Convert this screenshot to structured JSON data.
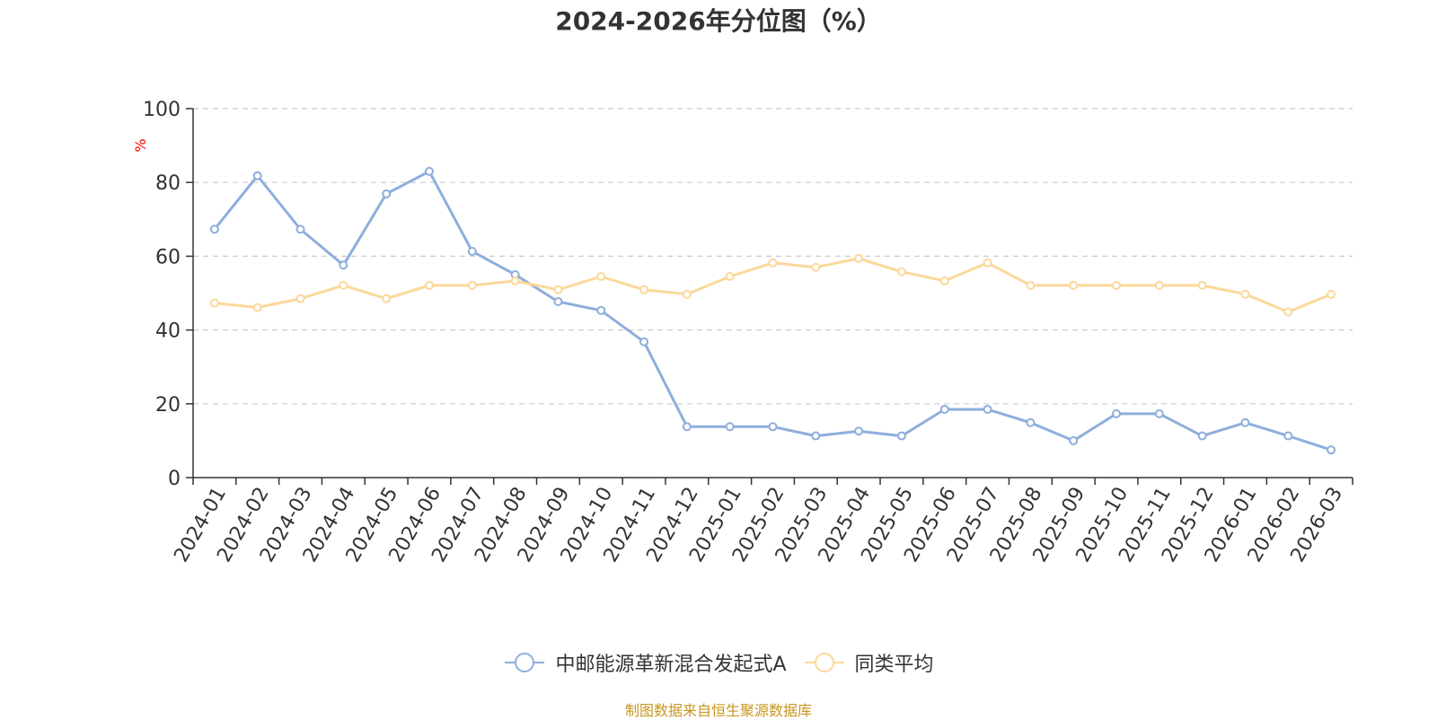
{
  "chart_data": {
    "type": "line",
    "title": "2024-2026年分位图（%）",
    "ylabel": "%",
    "xlabel": "",
    "ylim": [
      0,
      100
    ],
    "yticks": [
      0,
      20,
      40,
      60,
      80,
      100
    ],
    "grid": true,
    "legend_position": "bottom",
    "categories": [
      "2024-01",
      "2024-02",
      "2024-03",
      "2024-04",
      "2024-05",
      "2024-06",
      "2024-07",
      "2024-08",
      "2024-09",
      "2024-10",
      "2024-11",
      "2024-12",
      "2025-01",
      "2025-02",
      "2025-03",
      "2025-04",
      "2025-05",
      "2025-06",
      "2025-07",
      "2025-08",
      "2025-09",
      "2025-10",
      "2025-11",
      "2025-12",
      "2026-01",
      "2026-02",
      "2026-03"
    ],
    "series": [
      {
        "name": "中邮能源革新混合发起式A",
        "color": "#8eaedc",
        "values": [
          67.3,
          81.8,
          67.3,
          57.6,
          76.9,
          83.0,
          61.3,
          55.0,
          47.7,
          45.3,
          36.8,
          13.8,
          13.8,
          13.8,
          11.3,
          12.6,
          11.3,
          18.5,
          18.5,
          14.9,
          10.0,
          17.3,
          17.3,
          11.3,
          14.9,
          11.3,
          7.5
        ]
      },
      {
        "name": "同类平均",
        "color": "#fbd89a",
        "values": [
          47.3,
          46.1,
          48.5,
          52.1,
          48.5,
          52.1,
          52.1,
          53.3,
          50.9,
          54.5,
          50.9,
          49.7,
          54.5,
          58.2,
          57.0,
          59.4,
          55.8,
          53.3,
          58.2,
          52.1,
          52.1,
          52.1,
          52.1,
          52.1,
          49.7,
          44.9,
          49.7
        ]
      }
    ]
  },
  "source_text": "制图数据来自恒生聚源数据库",
  "colors": {
    "title": "#333333",
    "axis": "#333333",
    "grid": "#cccccc",
    "ylabel": "#ff0000",
    "source": "#c8961e"
  }
}
